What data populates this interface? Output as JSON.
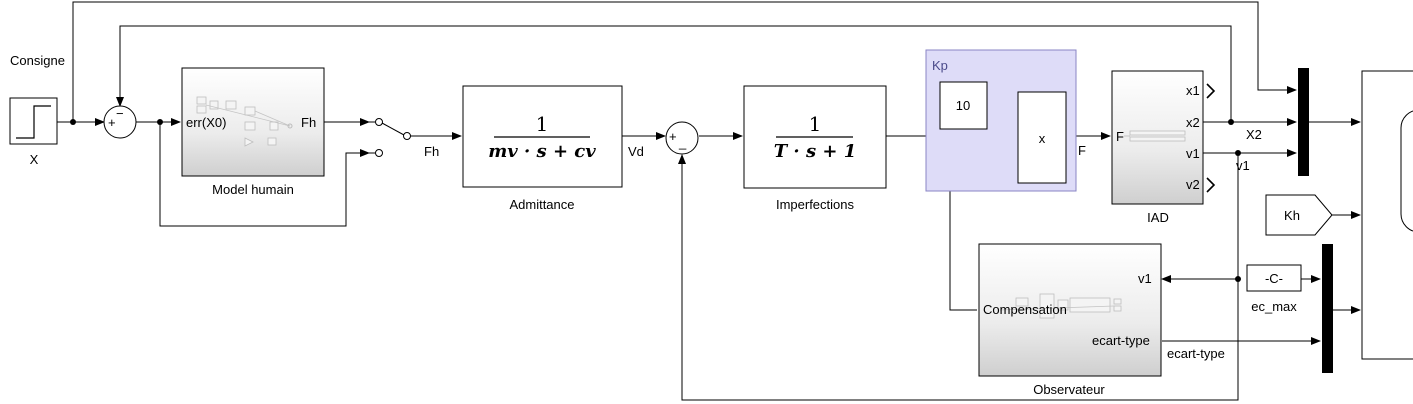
{
  "labels": {
    "consigne": "Consigne",
    "step": "X",
    "model_humain": "Model humain",
    "model_in_port": "err(X0)",
    "model_out_port": "Fh",
    "switch_out": "Fh",
    "admittance_num": "1",
    "admittance_den": "mv · s + cv",
    "admittance": "Admittance",
    "vd": "Vd",
    "sum1_plus": "+",
    "sum1_minus": "−",
    "sum2_plus": "+",
    "sum2_minus": "_",
    "imperf_num": "1",
    "imperf_den": "T · s + 1",
    "imperfections": "Imperfections",
    "kp_title": "Kp",
    "const_10": "10",
    "product": "x",
    "f_signal": "F",
    "iad": "IAD",
    "iad_in_port": "F",
    "iad_x1": "x1",
    "iad_x2": "x2",
    "iad_v1": "v1",
    "iad_v2": "v2",
    "x2_signal": "X2",
    "v1_signal": "v1",
    "kh": "Kh",
    "const_c": "-C-",
    "ec_max": "ec_max",
    "obs_v1": "v1",
    "obs_comp": "Compensation",
    "obs_ecart": "ecart-type",
    "ecart_signal": "ecart-type",
    "observateur": "Observateur"
  },
  "colors": {
    "kp_fill": "#dedcf8",
    "kp_border": "#8a85c4",
    "kp_title": "#4a4a8a",
    "line": "#000000"
  }
}
